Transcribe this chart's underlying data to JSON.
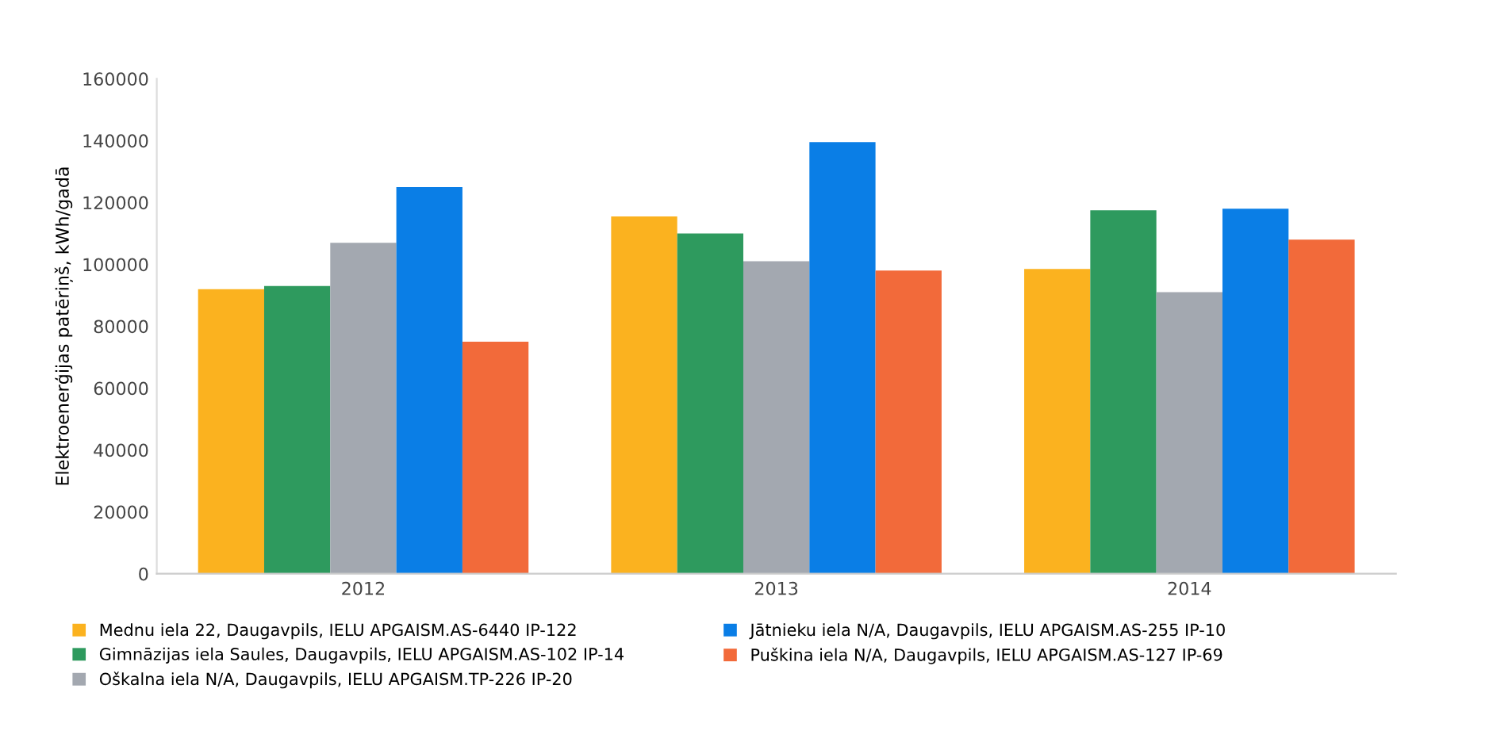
{
  "chart_data": {
    "type": "bar",
    "ylabel": "Elektroenerģijas patēriņš, kWh/gadā",
    "categories": [
      "2012",
      "2013",
      "2014"
    ],
    "series": [
      {
        "name": "Mednu iela 22, Daugavpils, IELU APGAISM.AS-6440 IP-122",
        "color": "#fbb21f",
        "values": [
          92000,
          115500,
          98500
        ]
      },
      {
        "name": "Gimnāzijas iela Saules, Daugavpils, IELU APGAISM.AS-102 IP-14",
        "color": "#2e9a5e",
        "values": [
          93000,
          110000,
          117500
        ]
      },
      {
        "name": "Oškalna iela N/A, Daugavpils, IELU APGAISM.TP-226 IP-20",
        "color": "#a3a8b0",
        "values": [
          107000,
          101000,
          91000
        ]
      },
      {
        "name": "Jātnieku iela N/A, Daugavpils, IELU APGAISM.AS-255 IP-10",
        "color": "#0a7ee6",
        "values": [
          125000,
          139500,
          118000
        ]
      },
      {
        "name": "Puškina iela N/A, Daugavpils, IELU APGAISM.AS-127 IP-69",
        "color": "#f26a3a",
        "values": [
          75000,
          98000,
          108000
        ]
      }
    ],
    "ylim": [
      0,
      160000
    ],
    "yticks": [
      0,
      20000,
      40000,
      60000,
      80000,
      100000,
      120000,
      140000,
      160000
    ],
    "grid": false,
    "legend": "bottom"
  }
}
